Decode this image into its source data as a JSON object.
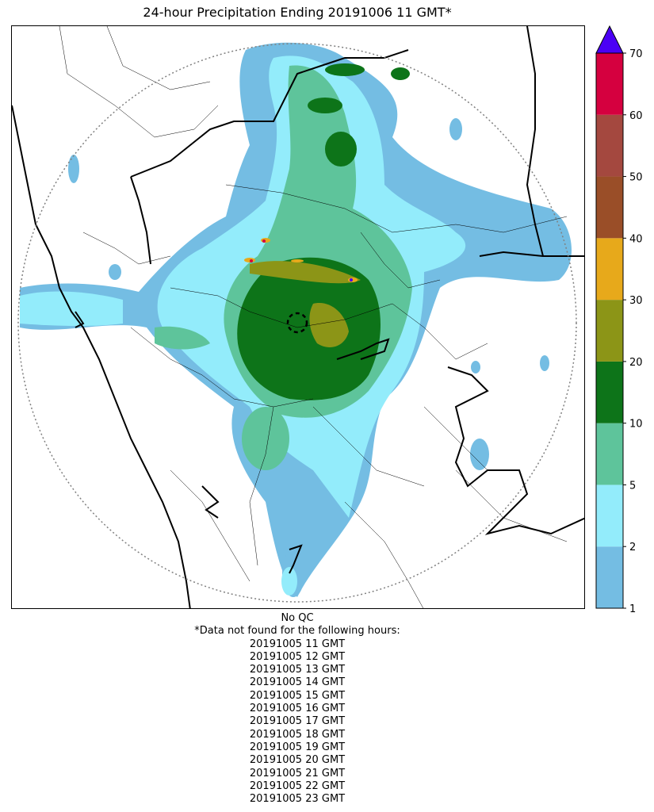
{
  "title": "24-hour Precipitation Ending 20191006 11 GMT*",
  "map": {
    "radar_range_ring": "dotted",
    "radar_site_marker": "dashed-circle",
    "colors": {
      "state_borders": "#000000",
      "district_borders": "#000000",
      "range_ring": "#808080"
    }
  },
  "colorbar": {
    "ticks": [
      "1",
      "2",
      "5",
      "10",
      "20",
      "30",
      "40",
      "50",
      "60",
      "70"
    ],
    "colors": [
      "#74bde3",
      "#93ecfb",
      "#5ec49b",
      "#0d7419",
      "#8c9517",
      "#e7a91b",
      "#9a4e28",
      "#a4483f",
      "#d5003f"
    ],
    "extend_color": "#4b00f5"
  },
  "footer": {
    "qc": "No QC",
    "note": "*Data not found for the following hours:",
    "hours": [
      "20191005 11 GMT",
      "20191005 12 GMT",
      "20191005 13 GMT",
      "20191005 14 GMT",
      "20191005 15 GMT",
      "20191005 16 GMT",
      "20191005 17 GMT",
      "20191005 18 GMT",
      "20191005 19 GMT",
      "20191005 20 GMT",
      "20191005 21 GMT",
      "20191005 22 GMT",
      "20191005 23 GMT"
    ]
  }
}
